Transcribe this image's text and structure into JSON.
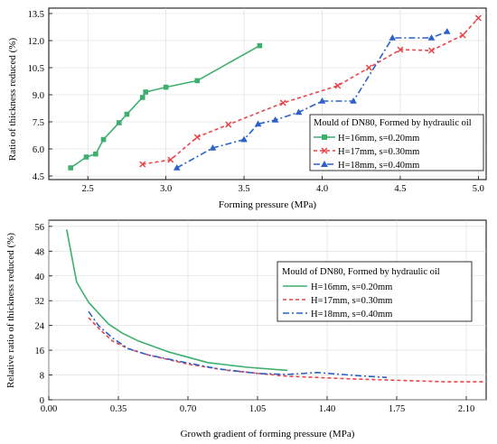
{
  "chart_data": [
    {
      "type": "line",
      "title": "",
      "xlabel": "Forming pressure (MPa)",
      "ylabel": "Ratio of thickness reduced (%)",
      "xlim": [
        2.25,
        5.05
      ],
      "ylim": [
        4.3,
        13.8
      ],
      "xticks": [
        2.5,
        3.0,
        3.5,
        4.0,
        4.5,
        5.0
      ],
      "xtick_labels": [
        "2.5",
        "3.0",
        "3.5",
        "4.0",
        "4.5",
        "5.0"
      ],
      "yticks": [
        4.5,
        6.0,
        7.5,
        9.0,
        10.5,
        12.0,
        13.5
      ],
      "ytick_labels": [
        "4.5",
        "6.0",
        "7.5",
        "9.0",
        "10.5",
        "12.0",
        "13.5"
      ],
      "grid": true,
      "legend_title": "Mould of DN80, Formed by hydraulic oil",
      "legend_position": "right",
      "series": [
        {
          "name": "H=16mm, s=0.20mm",
          "color": "#3daf6e",
          "dash": "solid",
          "marker": "square",
          "x": [
            2.39,
            2.49,
            2.55,
            2.6,
            2.7,
            2.75,
            2.85,
            2.87,
            3.0,
            3.2,
            3.6
          ],
          "y": [
            4.95,
            5.55,
            5.72,
            6.52,
            7.45,
            7.92,
            8.85,
            9.15,
            9.42,
            9.78,
            11.72
          ]
        },
        {
          "name": "H=17mm, s=0.30mm",
          "color": "#e8454a",
          "dash": "dashed",
          "marker": "x",
          "x": [
            2.85,
            3.03,
            3.2,
            3.4,
            3.75,
            4.1,
            4.3,
            4.5,
            4.7,
            4.9,
            5.0
          ],
          "y": [
            5.15,
            5.4,
            6.65,
            7.35,
            8.55,
            9.5,
            10.5,
            11.5,
            11.45,
            12.3,
            13.25
          ]
        },
        {
          "name": "H=18mm, s=0.40mm",
          "color": "#2a62c9",
          "dash": "dashdot",
          "marker": "triangle",
          "x": [
            3.07,
            3.3,
            3.5,
            3.59,
            3.7,
            3.85,
            4.0,
            4.2,
            4.45,
            4.7,
            4.8
          ],
          "y": [
            4.95,
            6.05,
            6.52,
            7.38,
            7.6,
            8.03,
            8.65,
            8.65,
            12.15,
            12.15,
            12.5
          ]
        }
      ]
    },
    {
      "type": "line",
      "title": "",
      "xlabel": "Growth gradient of forming pressure (MPa)",
      "ylabel": "Relative ratio of thickness reduced (%)",
      "xlim": [
        0,
        2.2
      ],
      "ylim": [
        0,
        58
      ],
      "xticks": [
        0.0,
        0.35,
        0.7,
        1.05,
        1.4,
        1.75,
        2.1
      ],
      "xtick_labels": [
        "0.00",
        "0.35",
        "0.70",
        "1.05",
        "1.40",
        "1.75",
        "2.10"
      ],
      "yticks": [
        0,
        8,
        16,
        24,
        32,
        40,
        48,
        56
      ],
      "ytick_labels": [
        "0",
        "8",
        "16",
        "24",
        "32",
        "40",
        "48",
        "56"
      ],
      "grid": true,
      "legend_title": "Mould of DN80, Formed by hydraulic oil",
      "legend_position": "right",
      "series": [
        {
          "name": "H=16mm, s=0.20mm",
          "color": "#3daf6e",
          "dash": "solid",
          "x": [
            0.09,
            0.14,
            0.2,
            0.25,
            0.3,
            0.37,
            0.45,
            0.6,
            0.8,
            1.0,
            1.2
          ],
          "y": [
            55.0,
            38.0,
            31.5,
            28.0,
            24.5,
            21.5,
            19.0,
            15.5,
            12.0,
            10.5,
            9.5
          ]
        },
        {
          "name": "H=17mm, s=0.30mm",
          "color": "#e8454a",
          "dash": "dashed",
          "x": [
            0.2,
            0.26,
            0.32,
            0.4,
            0.5,
            0.7,
            0.9,
            1.2,
            1.5,
            1.8,
            2.0,
            2.2
          ],
          "y": [
            26.5,
            22.5,
            19.0,
            16.5,
            14.5,
            11.5,
            9.5,
            7.6,
            6.8,
            6.2,
            5.8,
            5.8
          ]
        },
        {
          "name": "H=18mm, s=0.40mm",
          "color": "#2a62c9",
          "dash": "dashdot",
          "x": [
            0.2,
            0.25,
            0.32,
            0.4,
            0.5,
            0.65,
            0.85,
            1.05,
            1.2,
            1.35,
            1.55,
            1.7
          ],
          "y": [
            28.5,
            24.0,
            20.0,
            16.5,
            14.5,
            12.5,
            10.0,
            8.5,
            8.2,
            8.8,
            7.8,
            7.2
          ]
        }
      ]
    }
  ]
}
